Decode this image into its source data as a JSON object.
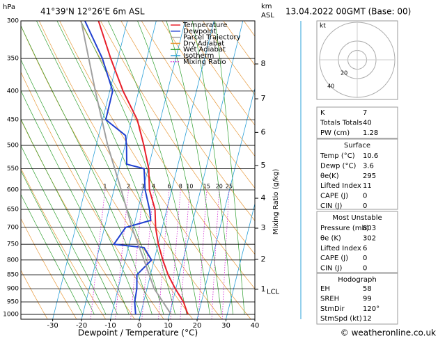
{
  "chart_data": {
    "type": "skewt",
    "pressure_unit": "hPa",
    "location": "41°39'N 12°26'E 6m ASL",
    "km_label": "km",
    "asl_label": "ASL",
    "datetime": "13.04.2022 00GMT (Base: 00)",
    "xlabel": "Dewpoint / Temperature (°C)",
    "y2label": "Mixing Ratio (g/kg)",
    "footer": "© weatheronline.co.uk",
    "xlim": [
      -41,
      40
    ],
    "xticks": [
      -30,
      -20,
      -10,
      0,
      10,
      20,
      30,
      40
    ],
    "ylim": [
      300,
      1020
    ],
    "yticks": [
      300,
      350,
      400,
      450,
      500,
      550,
      600,
      650,
      700,
      750,
      800,
      850,
      900,
      950,
      1000
    ],
    "km_ticks": [
      {
        "value": 902,
        "label": "1"
      },
      {
        "value": 798,
        "label": "2"
      },
      {
        "value": 702,
        "label": "3"
      },
      {
        "value": 621,
        "label": "4"
      },
      {
        "value": 543,
        "label": "5"
      },
      {
        "value": 474,
        "label": "6"
      },
      {
        "value": 413,
        "label": "7"
      },
      {
        "value": 358,
        "label": "8"
      }
    ],
    "lcl": {
      "value": 911,
      "label": "LCL"
    },
    "mixing_ratios": [
      1,
      2,
      3,
      4,
      6,
      8,
      10,
      15,
      20,
      25
    ],
    "series": [
      {
        "name": "Temperature",
        "color": "#e8202a",
        "pressure": [
          1000,
          950,
          900,
          850,
          800,
          750,
          700,
          650,
          600,
          550,
          500,
          450,
          400,
          350,
          300
        ],
        "values": [
          16.4,
          13.8,
          9.8,
          6.1,
          3.0,
          0.1,
          -2.3,
          -4.1,
          -7.7,
          -9.8,
          -13.5,
          -18,
          -25.4,
          -32.5,
          -40
        ]
      },
      {
        "name": "Dewpoint",
        "color": "#2040d0",
        "pressure": [
          1000,
          950,
          900,
          850,
          800,
          760,
          750,
          700,
          680,
          650,
          600,
          550,
          540,
          500,
          480,
          450,
          400,
          350,
          300
        ],
        "values": [
          -1.7,
          -3.1,
          -3.5,
          -4.7,
          -0.9,
          -4.6,
          -15.3,
          -12.7,
          -4.6,
          -6,
          -9.2,
          -11.4,
          -17.8,
          -19.5,
          -20.7,
          -28.9,
          -29,
          -35.4,
          -44.7
        ]
      },
      {
        "name": "Parcel Trajectory",
        "color": "#a0a0a0",
        "pressure": [
          1000,
          900,
          800,
          700,
          600,
          500,
          400,
          300
        ],
        "values": [
          10.6,
          2.5,
          -3.5,
          -10.5,
          -17.5,
          -26,
          -35,
          -46
        ]
      }
    ],
    "reference_lines": [
      {
        "name": "Dry Adiabat",
        "color": "#e89a3c"
      },
      {
        "name": "Wet Adiabat",
        "color": "#30a030"
      },
      {
        "name": "Isotherm",
        "color": "#2aa0d8"
      },
      {
        "name": "Mixing Ratio",
        "color": "#d020d0"
      }
    ],
    "hodograph": {
      "unit": "kt",
      "rings": [
        20,
        40
      ]
    },
    "indices": [
      [
        "K",
        7
      ],
      [
        "Totals Totals",
        40
      ],
      [
        "PW (cm)",
        1.28
      ]
    ],
    "surface": {
      "title": "Surface",
      "rows": [
        [
          "Temp (°C)",
          10.6
        ],
        [
          "Dewp (°C)",
          3.6
        ],
        [
          "θe(K)",
          295
        ],
        [
          "Lifted Index",
          11
        ],
        [
          "CAPE (J)",
          0
        ],
        [
          "CIN (J)",
          0
        ]
      ]
    },
    "most_unstable": {
      "title": "Most Unstable",
      "rows": [
        [
          "Pressure (mb)",
          803
        ],
        [
          "θe (K)",
          302
        ],
        [
          "Lifted Index",
          6
        ],
        [
          "CAPE (J)",
          0
        ],
        [
          "CIN (J)",
          0
        ]
      ]
    },
    "hodograph_table": {
      "title": "Hodograph",
      "rows": [
        [
          "EH",
          58
        ],
        [
          "SREH",
          99
        ],
        [
          "StmDir",
          "120°"
        ],
        [
          "StmSpd (kt)",
          12
        ]
      ]
    }
  }
}
